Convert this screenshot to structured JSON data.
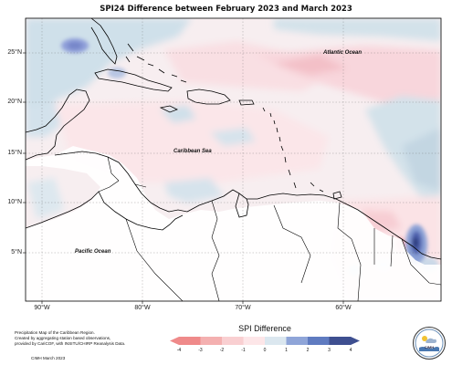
{
  "title": "SPI24 Difference between February 2023 and March 2023",
  "lat_ticks": [
    "25°N",
    "20°N",
    "15°N",
    "10°N",
    "5°N"
  ],
  "lon_ticks": [
    "90°W",
    "80°W",
    "70°W",
    "60°W"
  ],
  "places": {
    "atlantic": "Atlantic Ocean",
    "caribbean": "Caribbean Sea",
    "pacific": "Pacific Ocean"
  },
  "footer": {
    "line1": "Precipitation Map of the Caribbean Region.",
    "line2": "Created by aggregating station based observations,",
    "line3": "provided by CariCOF, with INSITU/CHIRP Reanalysis Data.",
    "credit": "CIMH March 2023"
  },
  "legend": {
    "title": "SPI Difference",
    "ticks": [
      "-4",
      "-3",
      "-2",
      "-1",
      "0",
      "1",
      "2",
      "3",
      "4"
    ],
    "colors": [
      "#ef8a8a",
      "#f4b0b0",
      "#f9cfd1",
      "#fde6e8",
      "#dbe7ef",
      "#8fa5d8",
      "#5f7bc0",
      "#3e4f90"
    ]
  },
  "logo": {
    "label": "CIMH"
  },
  "colors": {
    "ocean_blue": "#cfdfe9",
    "pink": "#fbe3e6",
    "pink_strong": "#f6c6cc",
    "blue_strong": "#6f86cf",
    "navy": "#2b3a7a"
  }
}
